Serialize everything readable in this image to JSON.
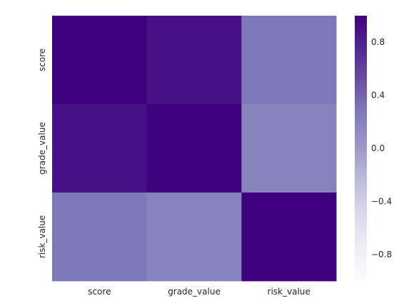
{
  "chart_data": {
    "type": "heatmap",
    "title": "",
    "xlabel": "",
    "ylabel": "",
    "x_categories": [
      "score",
      "grade_value",
      "risk_value"
    ],
    "y_categories": [
      "score",
      "grade_value",
      "risk_value"
    ],
    "values": [
      [
        1.0,
        0.9,
        0.28
      ],
      [
        0.9,
        1.0,
        0.2
      ],
      [
        0.28,
        0.2,
        1.0
      ]
    ],
    "color_range": [
      -1.0,
      1.0
    ],
    "colormap": "Purples",
    "colormap_stops": [
      "#fcfbfd",
      "#efedf5",
      "#dadaeb",
      "#bcbddc",
      "#9e9ac8",
      "#807dba",
      "#6a51a3",
      "#54278f",
      "#3f007d"
    ],
    "colorbar": {
      "ticks": [
        0.8,
        0.4,
        0.0,
        -0.4,
        -0.8
      ],
      "tick_labels": [
        "0.8",
        "0.4",
        "0.0",
        "−0.4",
        "−0.8"
      ]
    }
  }
}
